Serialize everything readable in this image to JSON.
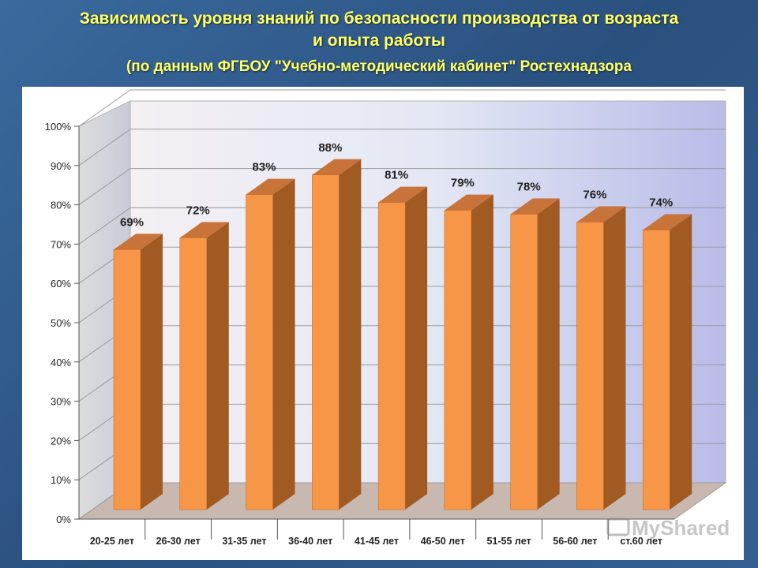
{
  "title": {
    "line1": "Зависимость уровня знаний по безопасности производства от возраста",
    "line2": "и опыта работы",
    "line3": "(по данным ФГБОУ \"Учебно-методический кабинет\" Ростехнадзора"
  },
  "watermark": "MyShared",
  "chart_data": {
    "type": "bar",
    "categories": [
      "20-25 лет",
      "26-30 лет",
      "31-35 лет",
      "36-40 лет",
      "41-45 лет",
      "46-50 лет",
      "51-55 лет",
      "56-60 лет",
      "ст.60 лет"
    ],
    "values": [
      69,
      72,
      83,
      88,
      81,
      79,
      78,
      76,
      74
    ],
    "data_labels": [
      "69%",
      "72%",
      "83%",
      "88%",
      "81%",
      "79%",
      "78%",
      "76%",
      "74%"
    ],
    "yticks": [
      "0%",
      "10%",
      "20%",
      "30%",
      "40%",
      "50%",
      "60%",
      "70%",
      "80%",
      "90%",
      "100%"
    ],
    "ylim": [
      0,
      100
    ],
    "grid": true,
    "colors": {
      "front": "#f79646",
      "side": "#a05a22",
      "top": "#c8733a"
    }
  }
}
